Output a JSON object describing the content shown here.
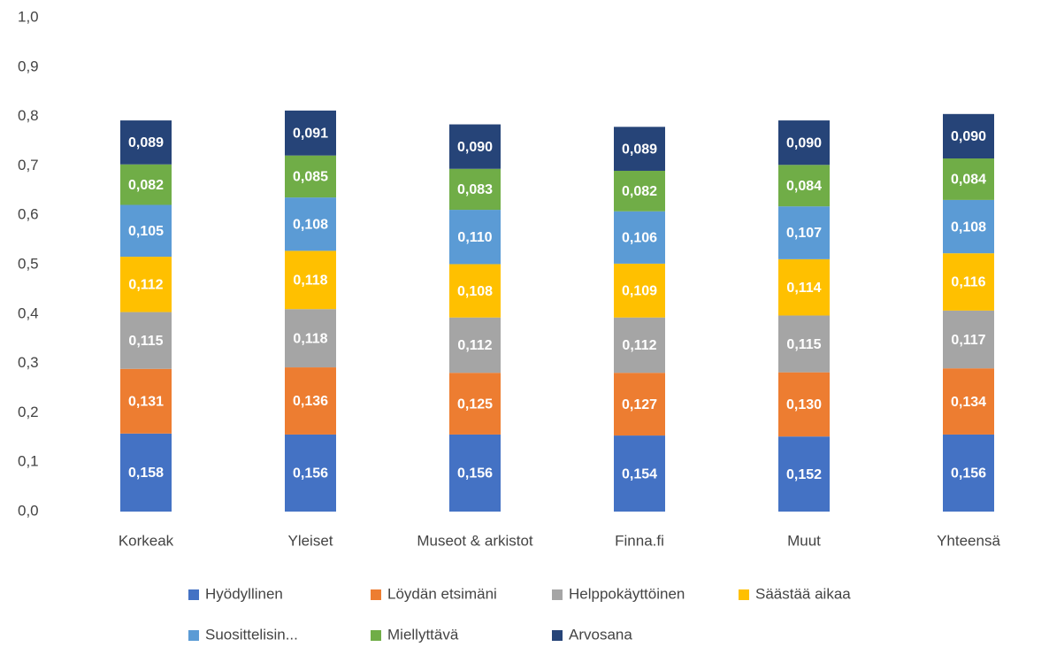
{
  "chart_data": {
    "type": "stacked_bar",
    "categories": [
      "Korkeak",
      "Yleiset",
      "Museot & arkistot",
      "Finna.fi",
      "Muut",
      "Yhteensä"
    ],
    "series": [
      {
        "name": "Hyödyllinen",
        "color": "#4472c4",
        "values": [
          0.158,
          0.156,
          0.156,
          0.154,
          0.152,
          0.156
        ],
        "value_labels": [
          "0,158",
          "0,156",
          "0,156",
          "0,154",
          "0,152",
          "0,156"
        ]
      },
      {
        "name": "Löydän etsimäni",
        "color": "#ed7d31",
        "values": [
          0.131,
          0.136,
          0.125,
          0.127,
          0.13,
          0.134
        ],
        "value_labels": [
          "0,131",
          "0,136",
          "0,125",
          "0,127",
          "0,130",
          "0,134"
        ]
      },
      {
        "name": "Helppokäyttöinen",
        "color": "#a5a5a5",
        "values": [
          0.115,
          0.118,
          0.112,
          0.112,
          0.115,
          0.117
        ],
        "value_labels": [
          "0,115",
          "0,118",
          "0,112",
          "0,112",
          "0,115",
          "0,117"
        ]
      },
      {
        "name": "Säästää aikaa",
        "color": "#ffc000",
        "values": [
          0.112,
          0.118,
          0.108,
          0.109,
          0.114,
          0.116
        ],
        "value_labels": [
          "0,112",
          "0,118",
          "0,108",
          "0,109",
          "0,114",
          "0,116"
        ]
      },
      {
        "name": "Suosittelisin...",
        "color": "#5b9bd5",
        "values": [
          0.105,
          0.108,
          0.11,
          0.106,
          0.107,
          0.108
        ],
        "value_labels": [
          "0,105",
          "0,108",
          "0,110",
          "0,106",
          "0,107",
          "0,108"
        ]
      },
      {
        "name": "Miellyttävä",
        "color": "#70ad47",
        "values": [
          0.082,
          0.085,
          0.083,
          0.082,
          0.084,
          0.084
        ],
        "value_labels": [
          "0,082",
          "0,085",
          "0,083",
          "0,082",
          "0,084",
          "0,084"
        ]
      },
      {
        "name": "Arvosana",
        "color": "#264478",
        "values": [
          0.089,
          0.091,
          0.09,
          0.089,
          0.09,
          0.09
        ],
        "value_labels": [
          "0,089",
          "0,091",
          "0,090",
          "0,089",
          "0,090",
          "0,090"
        ]
      }
    ],
    "ylim": [
      0,
      1
    ],
    "yticks": [
      {
        "value": 0,
        "label": "0,0"
      },
      {
        "value": 0.1,
        "label": "0,1"
      },
      {
        "value": 0.2,
        "label": "0,2"
      },
      {
        "value": 0.3,
        "label": "0,3"
      },
      {
        "value": 0.4,
        "label": "0,4"
      },
      {
        "value": 0.5,
        "label": "0,5"
      },
      {
        "value": 0.6,
        "label": "0,6"
      },
      {
        "value": 0.7,
        "label": "0,7"
      },
      {
        "value": 0.8,
        "label": "0,8"
      },
      {
        "value": 0.9,
        "label": "0,9"
      },
      {
        "value": 1,
        "label": "1,0"
      }
    ],
    "legend": "bottom"
  }
}
